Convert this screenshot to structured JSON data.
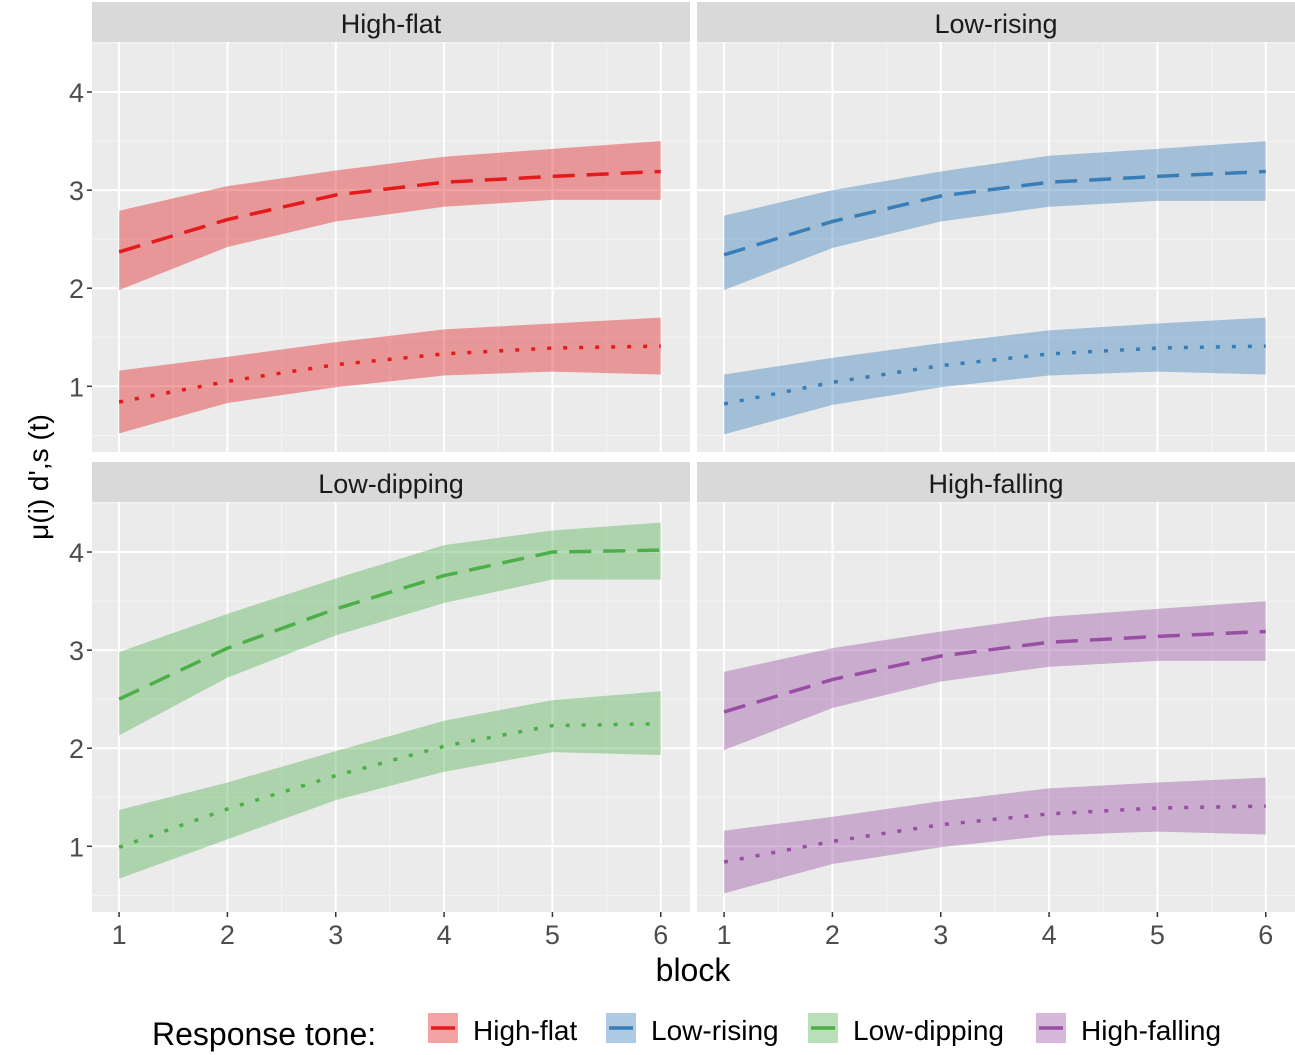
{
  "chart_data": {
    "type": "line",
    "xlabel": "block",
    "ylabel": "μ(i) d',s (t)",
    "ylabel_parts": {
      "mu": "μ",
      "sup": "(i)",
      "sub": "d',s",
      "arg": "(t)"
    },
    "x": [
      1,
      2,
      3,
      4,
      5,
      6
    ],
    "xlim": [
      0.75,
      6.27
    ],
    "ylim": [
      0.33,
      4.51
    ],
    "yticks": [
      1,
      2,
      3,
      4
    ],
    "xticks": [
      1,
      2,
      3,
      4,
      5,
      6
    ],
    "grid": true,
    "legend": {
      "title": "Response tone:",
      "placement": "bottom",
      "entries": [
        {
          "label": "High-flat",
          "color": "#e41a1c"
        },
        {
          "label": "Low-rising",
          "color": "#377eb8"
        },
        {
          "label": "Low-dipping",
          "color": "#4daf4a"
        },
        {
          "label": "High-falling",
          "color": "#984ea3"
        }
      ]
    },
    "panels": [
      {
        "title": "High-flat",
        "color": "#e41a1c",
        "series": [
          {
            "name": "dashed",
            "linetype": "dashed",
            "values": [
              2.37,
              2.7,
              2.95,
              3.08,
              3.14,
              3.19
            ],
            "lower": [
              1.98,
              2.42,
              2.68,
              2.83,
              2.9,
              2.9
            ],
            "upper": [
              2.79,
              3.04,
              3.2,
              3.34,
              3.42,
              3.5
            ]
          },
          {
            "name": "dotted",
            "linetype": "dotted",
            "values": [
              0.84,
              1.05,
              1.22,
              1.33,
              1.39,
              1.41
            ],
            "lower": [
              0.52,
              0.83,
              0.99,
              1.11,
              1.15,
              1.12
            ],
            "upper": [
              1.16,
              1.3,
              1.45,
              1.58,
              1.64,
              1.7
            ]
          }
        ]
      },
      {
        "title": "Low-rising",
        "color": "#377eb8",
        "series": [
          {
            "name": "dashed",
            "linetype": "dashed",
            "values": [
              2.34,
              2.68,
              2.94,
              3.08,
              3.14,
              3.19
            ],
            "lower": [
              1.98,
              2.41,
              2.68,
              2.83,
              2.89,
              2.89
            ],
            "upper": [
              2.74,
              3.0,
              3.19,
              3.35,
              3.42,
              3.5
            ]
          },
          {
            "name": "dotted",
            "linetype": "dotted",
            "values": [
              0.82,
              1.04,
              1.21,
              1.33,
              1.39,
              1.41
            ],
            "lower": [
              0.51,
              0.81,
              0.99,
              1.11,
              1.15,
              1.12
            ],
            "upper": [
              1.12,
              1.29,
              1.44,
              1.57,
              1.64,
              1.7
            ]
          }
        ]
      },
      {
        "title": "Low-dipping",
        "color": "#4daf4a",
        "series": [
          {
            "name": "dashed",
            "linetype": "dashed",
            "values": [
              2.5,
              3.02,
              3.42,
              3.76,
              4.0,
              4.02
            ],
            "lower": [
              2.13,
              2.72,
              3.15,
              3.48,
              3.72,
              3.72
            ],
            "upper": [
              2.98,
              3.37,
              3.73,
              4.07,
              4.22,
              4.3
            ]
          },
          {
            "name": "dotted",
            "linetype": "dotted",
            "values": [
              0.99,
              1.38,
              1.72,
              2.02,
              2.23,
              2.25
            ],
            "lower": [
              0.67,
              1.07,
              1.47,
              1.76,
              1.96,
              1.93
            ],
            "upper": [
              1.37,
              1.65,
              1.97,
              2.28,
              2.49,
              2.58
            ]
          }
        ]
      },
      {
        "title": "High-falling",
        "color": "#984ea3",
        "series": [
          {
            "name": "dashed",
            "linetype": "dashed",
            "values": [
              2.37,
              2.7,
              2.94,
              3.08,
              3.14,
              3.19
            ],
            "lower": [
              1.98,
              2.41,
              2.68,
              2.83,
              2.89,
              2.89
            ],
            "upper": [
              2.78,
              3.02,
              3.19,
              3.34,
              3.42,
              3.5
            ]
          },
          {
            "name": "dotted",
            "linetype": "dotted",
            "values": [
              0.84,
              1.05,
              1.22,
              1.33,
              1.39,
              1.41
            ],
            "lower": [
              0.52,
              0.82,
              0.99,
              1.11,
              1.15,
              1.12
            ],
            "upper": [
              1.16,
              1.3,
              1.46,
              1.59,
              1.65,
              1.7
            ]
          }
        ]
      }
    ]
  }
}
